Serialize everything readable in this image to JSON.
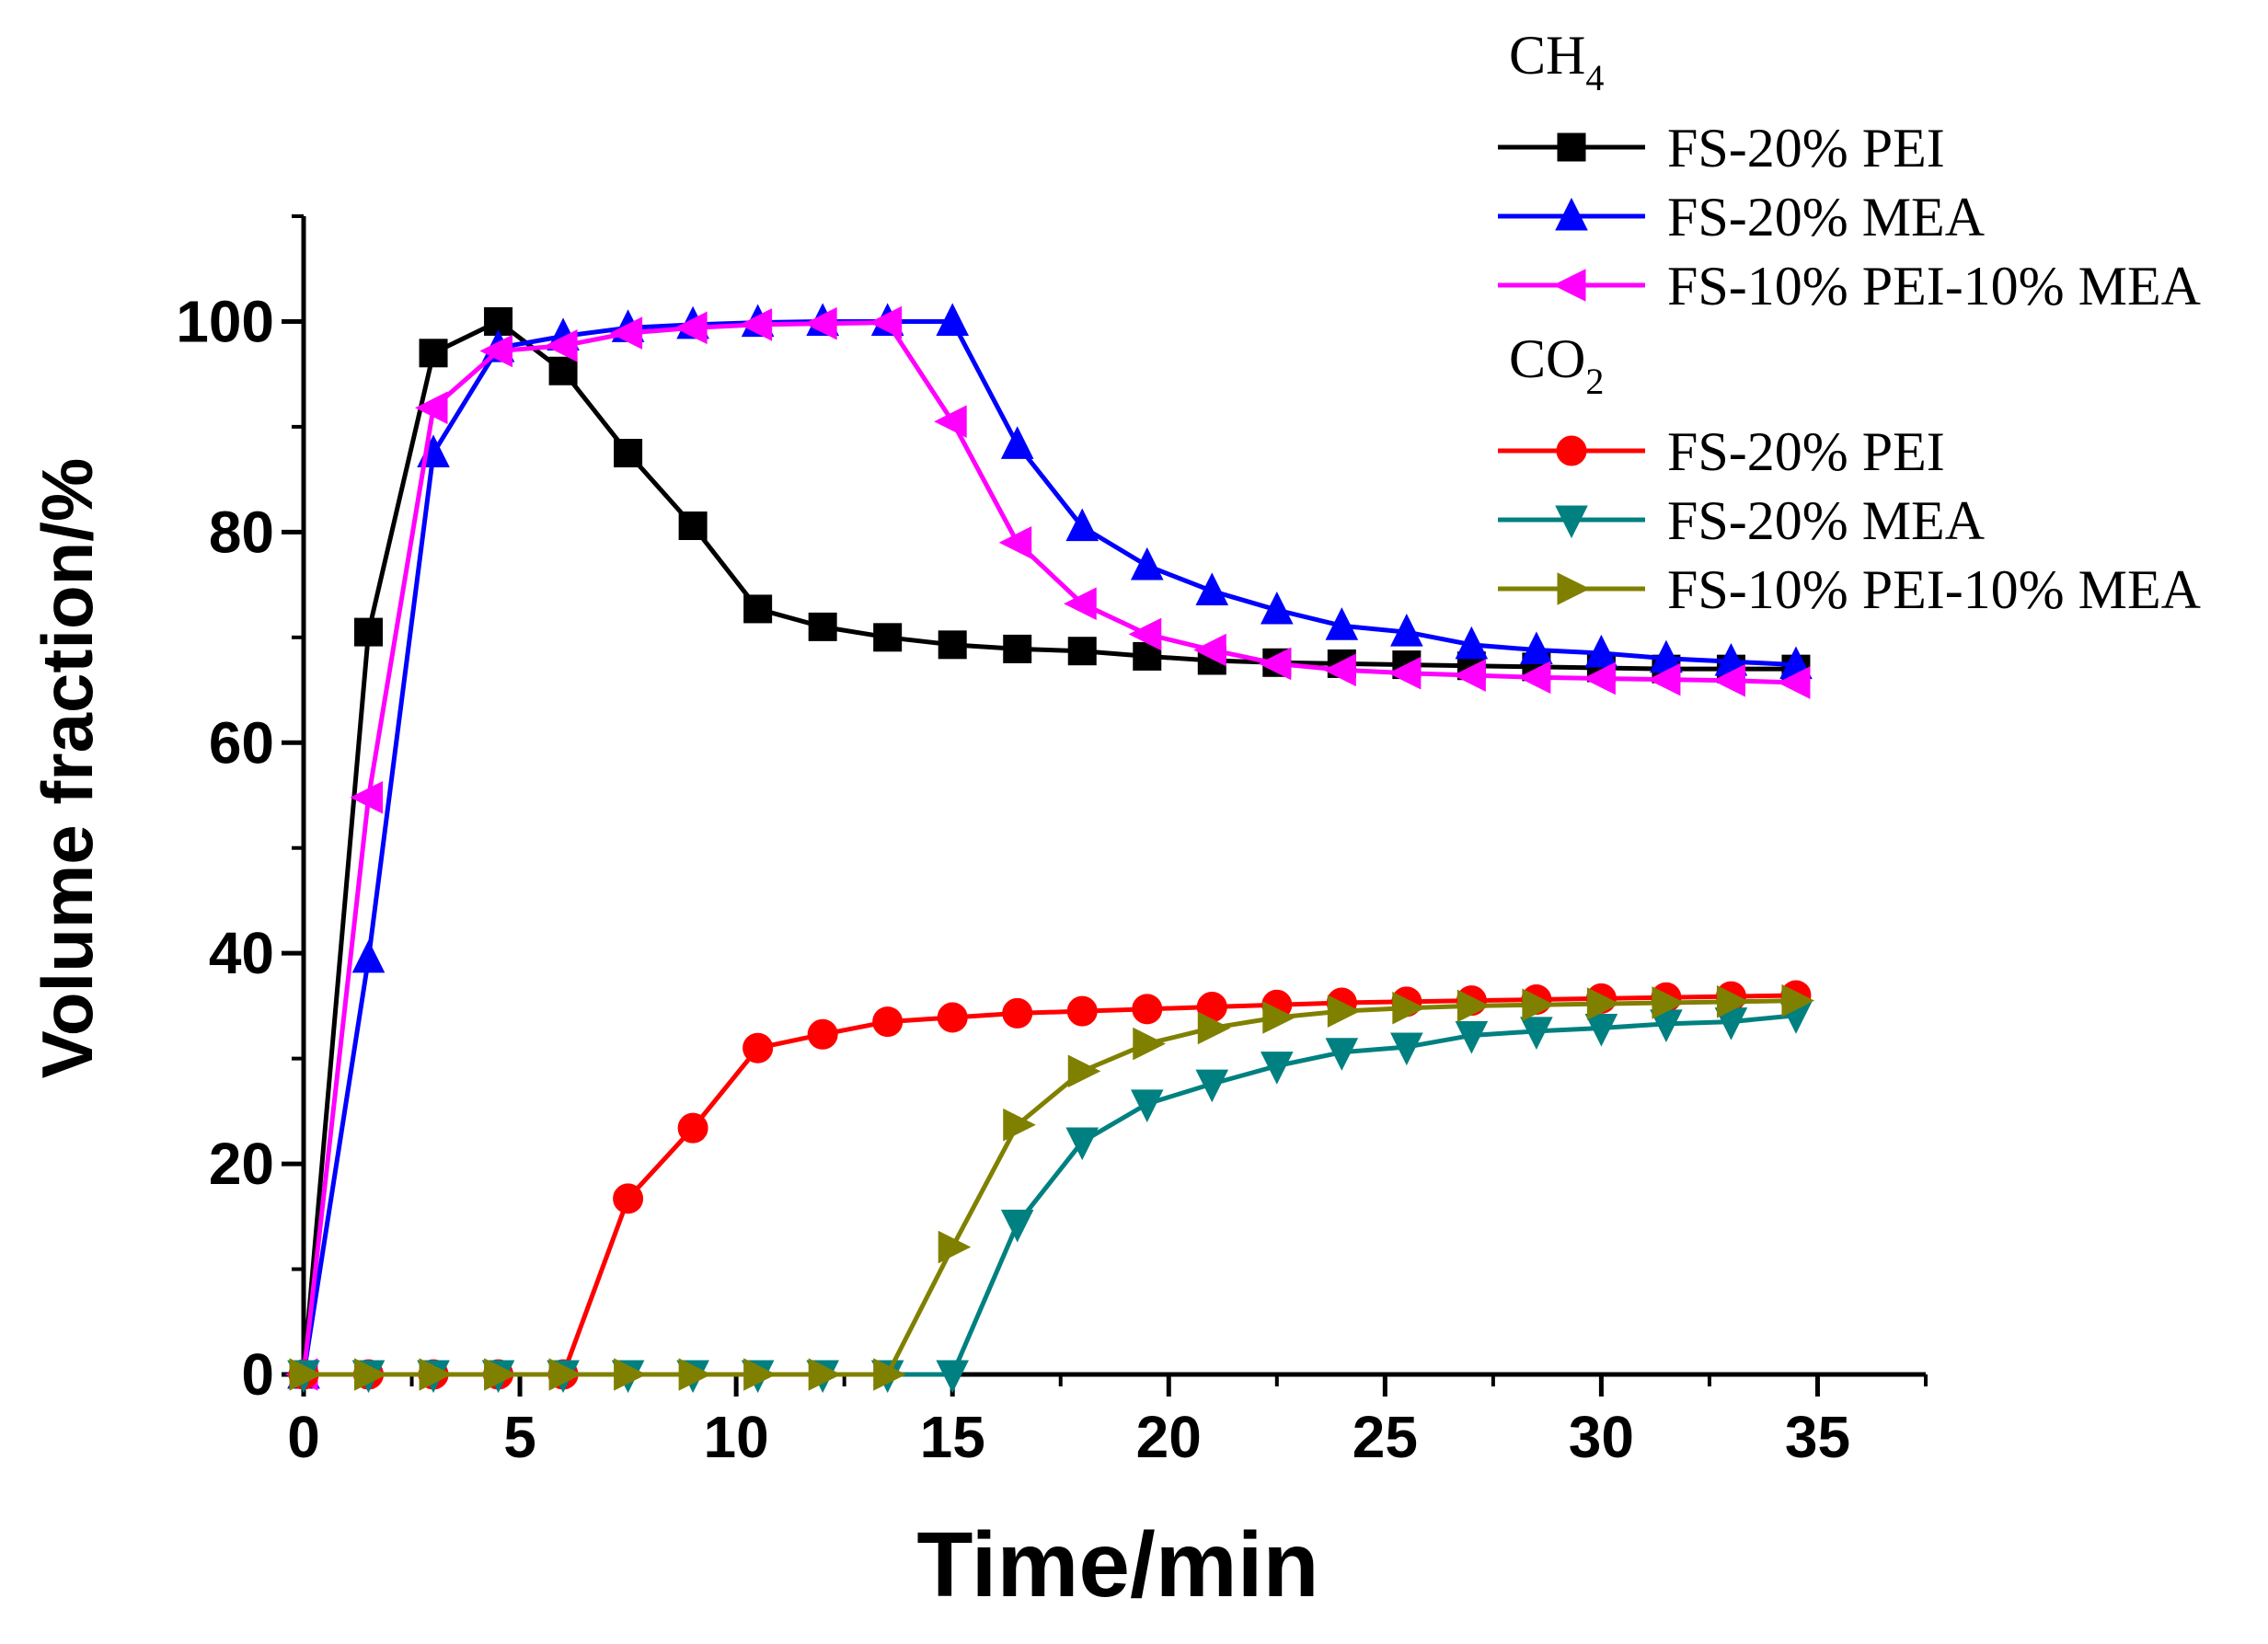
{
  "chart_data": {
    "type": "line",
    "xlabel": "Time/min",
    "ylabel": "Volume fraction/%",
    "xlim": [
      0,
      37.5
    ],
    "ylim": [
      0,
      110
    ],
    "xticks": [
      0,
      5,
      10,
      15,
      20,
      25,
      30,
      35
    ],
    "yticks": [
      0,
      20,
      40,
      60,
      80,
      100
    ],
    "xtick_labels": [
      "0",
      "5",
      "10",
      "15",
      "20",
      "25",
      "30",
      "35"
    ],
    "ytick_labels": [
      "0",
      "20",
      "40",
      "60",
      "80",
      "100"
    ],
    "grid": false,
    "legend_position": "top-right",
    "legend_groups": [
      {
        "title_main": "CH",
        "title_sub": "4",
        "series_indices": [
          0,
          1,
          2
        ]
      },
      {
        "title_main": "CO",
        "title_sub": "2",
        "series_indices": [
          3,
          4,
          5
        ]
      }
    ],
    "series": [
      {
        "name": "FS-20% PEI",
        "color": "#000000",
        "marker": "square",
        "x": [
          0,
          1.5,
          3,
          4.5,
          6,
          7.5,
          9,
          10.5,
          12,
          13.5,
          15,
          16.5,
          18,
          19.5,
          21,
          22.5,
          24,
          25.5,
          27,
          28.5,
          30,
          31.5,
          33,
          34.5
        ],
        "y": [
          0,
          70.5,
          97,
          100,
          95.3,
          87.5,
          80.6,
          72.7,
          71,
          70,
          69.3,
          68.9,
          68.7,
          68.2,
          67.8,
          67.6,
          67.5,
          67.4,
          67.3,
          67.2,
          67.1,
          67,
          67,
          67
        ]
      },
      {
        "name": "FS-20% MEA",
        "color": "#0000ff",
        "marker": "triangle-up",
        "x": [
          0,
          1.5,
          3,
          4.5,
          6,
          7.5,
          9,
          10.5,
          12,
          13.5,
          15,
          16.5,
          18,
          19.5,
          21,
          22.5,
          24,
          25.5,
          27,
          28.5,
          30,
          31.5,
          33,
          34.5
        ],
        "y": [
          0,
          39.5,
          87.5,
          97.5,
          98.6,
          99.4,
          99.7,
          99.9,
          100,
          100,
          100,
          88.3,
          80.5,
          76.8,
          74.4,
          72.6,
          71.1,
          70.5,
          69.3,
          68.8,
          68.5,
          68,
          67.7,
          67.4
        ]
      },
      {
        "name": "FS-10% PEI-10% MEA",
        "color": "#ff00ff",
        "marker": "triangle-left",
        "x": [
          0,
          1.5,
          3,
          4.5,
          6,
          7.5,
          9,
          10.5,
          12,
          13.5,
          15,
          16.5,
          18,
          19.5,
          21,
          22.5,
          24,
          25.5,
          27,
          28.5,
          30,
          31.5,
          33,
          34.5
        ],
        "y": [
          0,
          54.8,
          91.8,
          97.2,
          97.7,
          98.9,
          99.4,
          99.7,
          99.8,
          99.9,
          90.5,
          79,
          73.2,
          70.3,
          68.8,
          67.5,
          66.9,
          66.6,
          66.4,
          66.2,
          66.1,
          66,
          65.9,
          65.7
        ]
      },
      {
        "name": "FS-20% PEI",
        "color": "#ff0000",
        "marker": "circle",
        "x": [
          0,
          1.5,
          3,
          4.5,
          6,
          7.5,
          9,
          10.5,
          12,
          13.5,
          15,
          16.5,
          18,
          19.5,
          21,
          22.5,
          24,
          25.5,
          27,
          28.5,
          30,
          31.5,
          33,
          34.5
        ],
        "y": [
          0,
          0,
          0,
          0,
          0,
          16.7,
          23.4,
          31,
          32.3,
          33.5,
          33.9,
          34.3,
          34.5,
          34.7,
          34.9,
          35.1,
          35.3,
          35.4,
          35.5,
          35.6,
          35.7,
          35.8,
          35.9,
          36
        ]
      },
      {
        "name": "FS-20% MEA",
        "color": "#008080",
        "marker": "triangle-down",
        "x": [
          0,
          1.5,
          3,
          4.5,
          6,
          7.5,
          9,
          10.5,
          12,
          13.5,
          15,
          16.5,
          18,
          19.5,
          21,
          22.5,
          24,
          25.5,
          27,
          28.5,
          30,
          31.5,
          33,
          34.5
        ],
        "y": [
          0,
          0,
          0,
          0,
          0,
          0,
          0,
          0,
          0,
          0,
          0,
          14.3,
          22.1,
          25.7,
          27.6,
          29.3,
          30.6,
          31.1,
          32.2,
          32.6,
          32.9,
          33.3,
          33.5,
          34.1
        ]
      },
      {
        "name": "FS-10% PEI-10% MEA",
        "color": "#808000",
        "marker": "triangle-right",
        "x": [
          0,
          1.5,
          3,
          4.5,
          6,
          7.5,
          9,
          10.5,
          12,
          13.5,
          15,
          16.5,
          18,
          19.5,
          21,
          22.5,
          24,
          25.5,
          27,
          28.5,
          30,
          31.5,
          33,
          34.5
        ],
        "y": [
          0,
          0,
          0,
          0,
          0,
          0,
          0,
          0,
          0,
          0,
          12.1,
          23.7,
          28.8,
          31.4,
          32.9,
          33.9,
          34.5,
          34.8,
          35,
          35.1,
          35.2,
          35.3,
          35.4,
          35.5
        ]
      }
    ]
  }
}
